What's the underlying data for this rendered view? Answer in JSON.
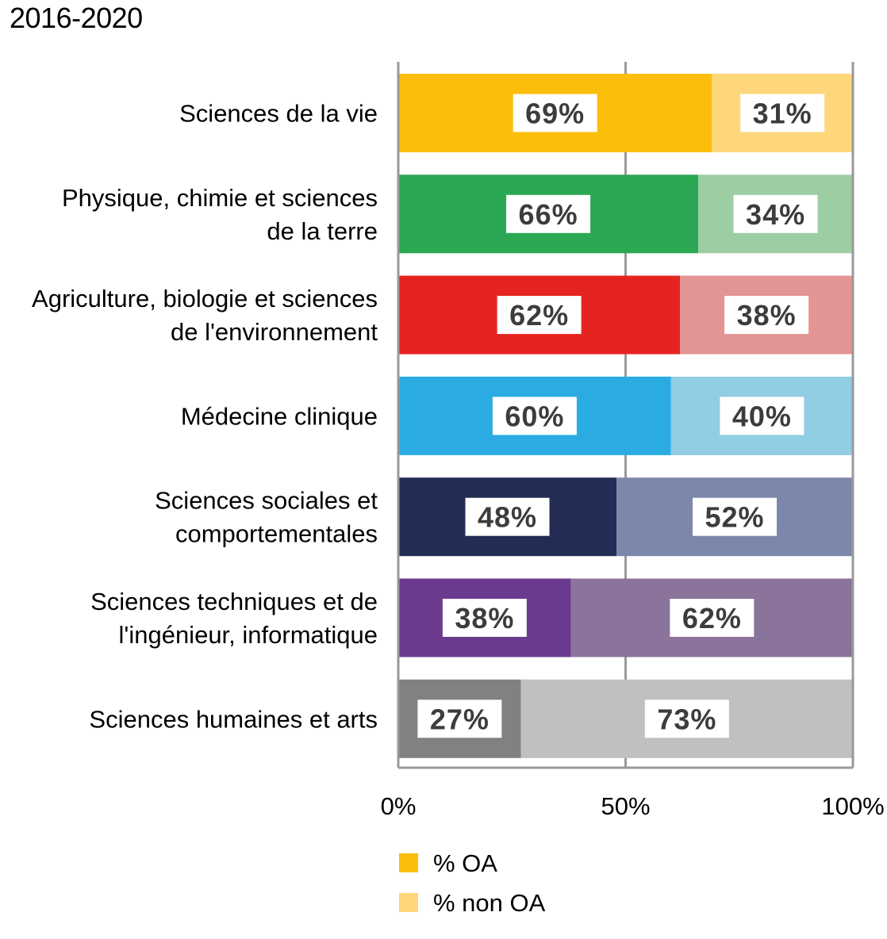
{
  "title": "2016-2020",
  "chart_data": {
    "type": "bar",
    "orientation": "horizontal",
    "stacked": true,
    "percent": true,
    "title": "2016-2020",
    "categories": [
      "Sciences de la vie",
      "Physique, chimie et sciences de la terre",
      "Agriculture, biologie et sciences de l'environnement",
      "Médecine clinique",
      "Sciences sociales et comportementales",
      "Sciences techniques et de l'ingénieur, informatique",
      "Sciences humaines et arts"
    ],
    "category_lines": [
      [
        "Sciences de la vie"
      ],
      [
        "Physique, chimie et sciences",
        "de la terre"
      ],
      [
        "Agriculture, biologie et sciences",
        "de l'environnement"
      ],
      [
        "Médecine clinique"
      ],
      [
        "Sciences sociales et",
        "comportementales"
      ],
      [
        "Sciences techniques et de",
        "l'ingénieur, informatique"
      ],
      [
        "Sciences humaines et arts"
      ]
    ],
    "series": [
      {
        "name": "% OA",
        "values": [
          69,
          66,
          62,
          60,
          48,
          38,
          27
        ],
        "labels": [
          "69%",
          "66%",
          "62%",
          "60%",
          "48%",
          "38%",
          "27%"
        ]
      },
      {
        "name": "% non OA",
        "values": [
          31,
          34,
          38,
          40,
          52,
          62,
          73
        ],
        "labels": [
          "31%",
          "34%",
          "38%",
          "40%",
          "52%",
          "62%",
          "73%"
        ]
      }
    ],
    "bar_colors": {
      "oa": [
        "#fbbe0a",
        "#2aa853",
        "#e52421",
        "#2aace2",
        "#222c54",
        "#6a3a8f",
        "#818181"
      ],
      "non_oa": [
        "#fed77b",
        "#9dcda2",
        "#e29594",
        "#91cde3",
        "#7c87aa",
        "#8a749b",
        "#c0c0c0"
      ]
    },
    "xlim": [
      0,
      100
    ],
    "xticks": [
      0,
      50,
      100
    ],
    "xtick_labels": [
      "0%",
      "50%",
      "100%"
    ],
    "grid": true,
    "axis_color": "#999999",
    "legend": {
      "placement": "bottom",
      "items": [
        {
          "label": "% OA",
          "color": "#fbbe0a"
        },
        {
          "label": "% non OA",
          "color": "#fed77b"
        }
      ]
    }
  }
}
